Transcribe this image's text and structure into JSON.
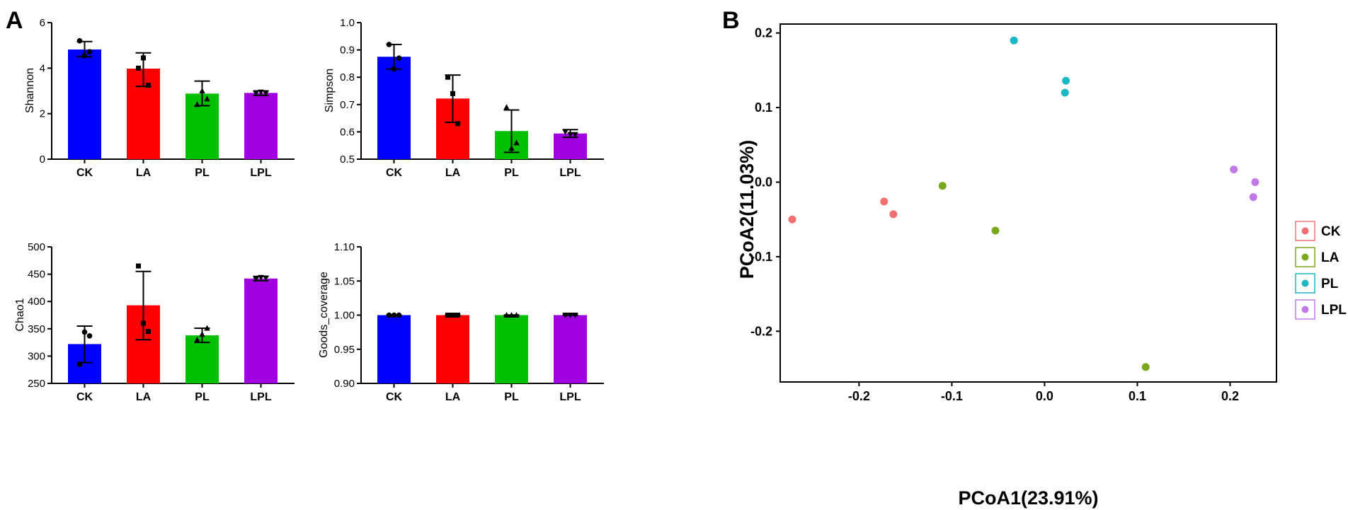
{
  "panels": {
    "a": "A",
    "b": "B"
  },
  "chart_data": [
    {
      "type": "bar",
      "id": "shannon",
      "title": "",
      "xlabel": "",
      "ylabel": "Shannon",
      "categories": [
        "CK",
        "LA",
        "PL",
        "LPL"
      ],
      "colors": [
        "#0000ff",
        "#ff0000",
        "#00c000",
        "#a000e0"
      ],
      "values": [
        4.82,
        3.98,
        2.88,
        2.91
      ],
      "error_low": [
        4.5,
        3.2,
        2.35,
        2.8
      ],
      "error_high": [
        5.17,
        4.67,
        3.43,
        3.0
      ],
      "points": [
        [
          5.2,
          4.55,
          4.72
        ],
        [
          4.0,
          4.45,
          3.25
        ],
        [
          2.4,
          3.0,
          2.65
        ],
        [
          2.9,
          2.95,
          2.9
        ]
      ],
      "ylim": [
        0,
        6
      ],
      "yticks": [
        "0",
        "2",
        "4",
        "6"
      ]
    },
    {
      "type": "bar",
      "id": "simpson",
      "title": "",
      "xlabel": "",
      "ylabel": "Simpson",
      "categories": [
        "CK",
        "LA",
        "PL",
        "LPL"
      ],
      "colors": [
        "#0000ff",
        "#ff0000",
        "#00c000",
        "#a000e0"
      ],
      "values": [
        0.875,
        0.722,
        0.603,
        0.594
      ],
      "error_low": [
        0.83,
        0.635,
        0.525,
        0.58
      ],
      "error_high": [
        0.92,
        0.808,
        0.68,
        0.608
      ],
      "points": [
        [
          0.92,
          0.83,
          0.87
        ],
        [
          0.8,
          0.74,
          0.63
        ],
        [
          0.69,
          0.54,
          0.56
        ],
        [
          0.6,
          0.59,
          0.59
        ]
      ],
      "ylim": [
        0.5,
        1.0
      ],
      "yticks": [
        "0.5",
        "0.6",
        "0.7",
        "0.8",
        "0.9",
        "1.0"
      ]
    },
    {
      "type": "bar",
      "id": "chao1",
      "title": "",
      "xlabel": "",
      "ylabel": "Chao1",
      "categories": [
        "CK",
        "LA",
        "PL",
        "LPL"
      ],
      "colors": [
        "#0000ff",
        "#ff0000",
        "#00c000",
        "#a000e0"
      ],
      "values": [
        322,
        393,
        338,
        442
      ],
      "error_low": [
        288,
        330,
        325,
        438
      ],
      "error_high": [
        355,
        455,
        351,
        446
      ],
      "points": [
        [
          285,
          344,
          337
        ],
        [
          465,
          360,
          345
        ],
        [
          330,
          340,
          351
        ],
        [
          441,
          444,
          443
        ]
      ],
      "ylim": [
        250,
        500
      ],
      "yticks": [
        "250",
        "300",
        "350",
        "400",
        "450",
        "500"
      ]
    },
    {
      "type": "bar",
      "id": "goods",
      "title": "",
      "xlabel": "",
      "ylabel": "Goods_coverage",
      "categories": [
        "CK",
        "LA",
        "PL",
        "LPL"
      ],
      "colors": [
        "#0000ff",
        "#ff0000",
        "#00c000",
        "#a000e0"
      ],
      "values": [
        1.0,
        1.0,
        1.0,
        1.0
      ],
      "error_low": [
        0.9998,
        0.9998,
        0.9998,
        0.9998
      ],
      "error_high": [
        1.0002,
        1.0002,
        1.0002,
        1.0002
      ],
      "points": [
        [
          1.0,
          1.0,
          1.0
        ],
        [
          1.0,
          1.0,
          1.0
        ],
        [
          1.0,
          1.0,
          1.0
        ],
        [
          1.0,
          1.0,
          1.0
        ]
      ],
      "ylim": [
        0.9,
        1.1
      ],
      "yticks": [
        "0.90",
        "0.95",
        "1.00",
        "1.05",
        "1.10"
      ]
    },
    {
      "type": "scatter",
      "id": "pcoa",
      "title": "",
      "xlabel": "PCoA1(23.91%)",
      "ylabel": "PCoA2(11.03%)",
      "xlim": [
        -0.285,
        0.25
      ],
      "ylim": [
        -0.268,
        0.212
      ],
      "xticks": [
        -0.2,
        -0.1,
        0.0,
        0.1,
        0.2
      ],
      "xtick_labels": [
        "-0.2",
        "-0.1",
        "0.0",
        "0.1",
        "0.2"
      ],
      "yticks": [
        -0.2,
        -0.1,
        0.0,
        0.1,
        0.2
      ],
      "ytick_labels": [
        "-0.2",
        "-0.1",
        "0.0",
        "0.1",
        "0.2"
      ],
      "series": [
        {
          "name": "CK",
          "color": "#f07070",
          "x": [
            -0.272,
            -0.173,
            -0.163
          ],
          "y": [
            -0.05,
            -0.026,
            -0.043
          ]
        },
        {
          "name": "LA",
          "color": "#7aa81a",
          "x": [
            -0.11,
            -0.053,
            0.109
          ],
          "y": [
            -0.005,
            -0.065,
            -0.248
          ]
        },
        {
          "name": "PL",
          "color": "#1ab8c4",
          "x": [
            -0.033,
            0.022,
            0.023
          ],
          "y": [
            0.19,
            0.12,
            0.136
          ]
        },
        {
          "name": "LPL",
          "color": "#c07ae8",
          "x": [
            0.204,
            0.227,
            0.225
          ],
          "y": [
            0.017,
            0.0,
            -0.02
          ]
        }
      ]
    }
  ]
}
